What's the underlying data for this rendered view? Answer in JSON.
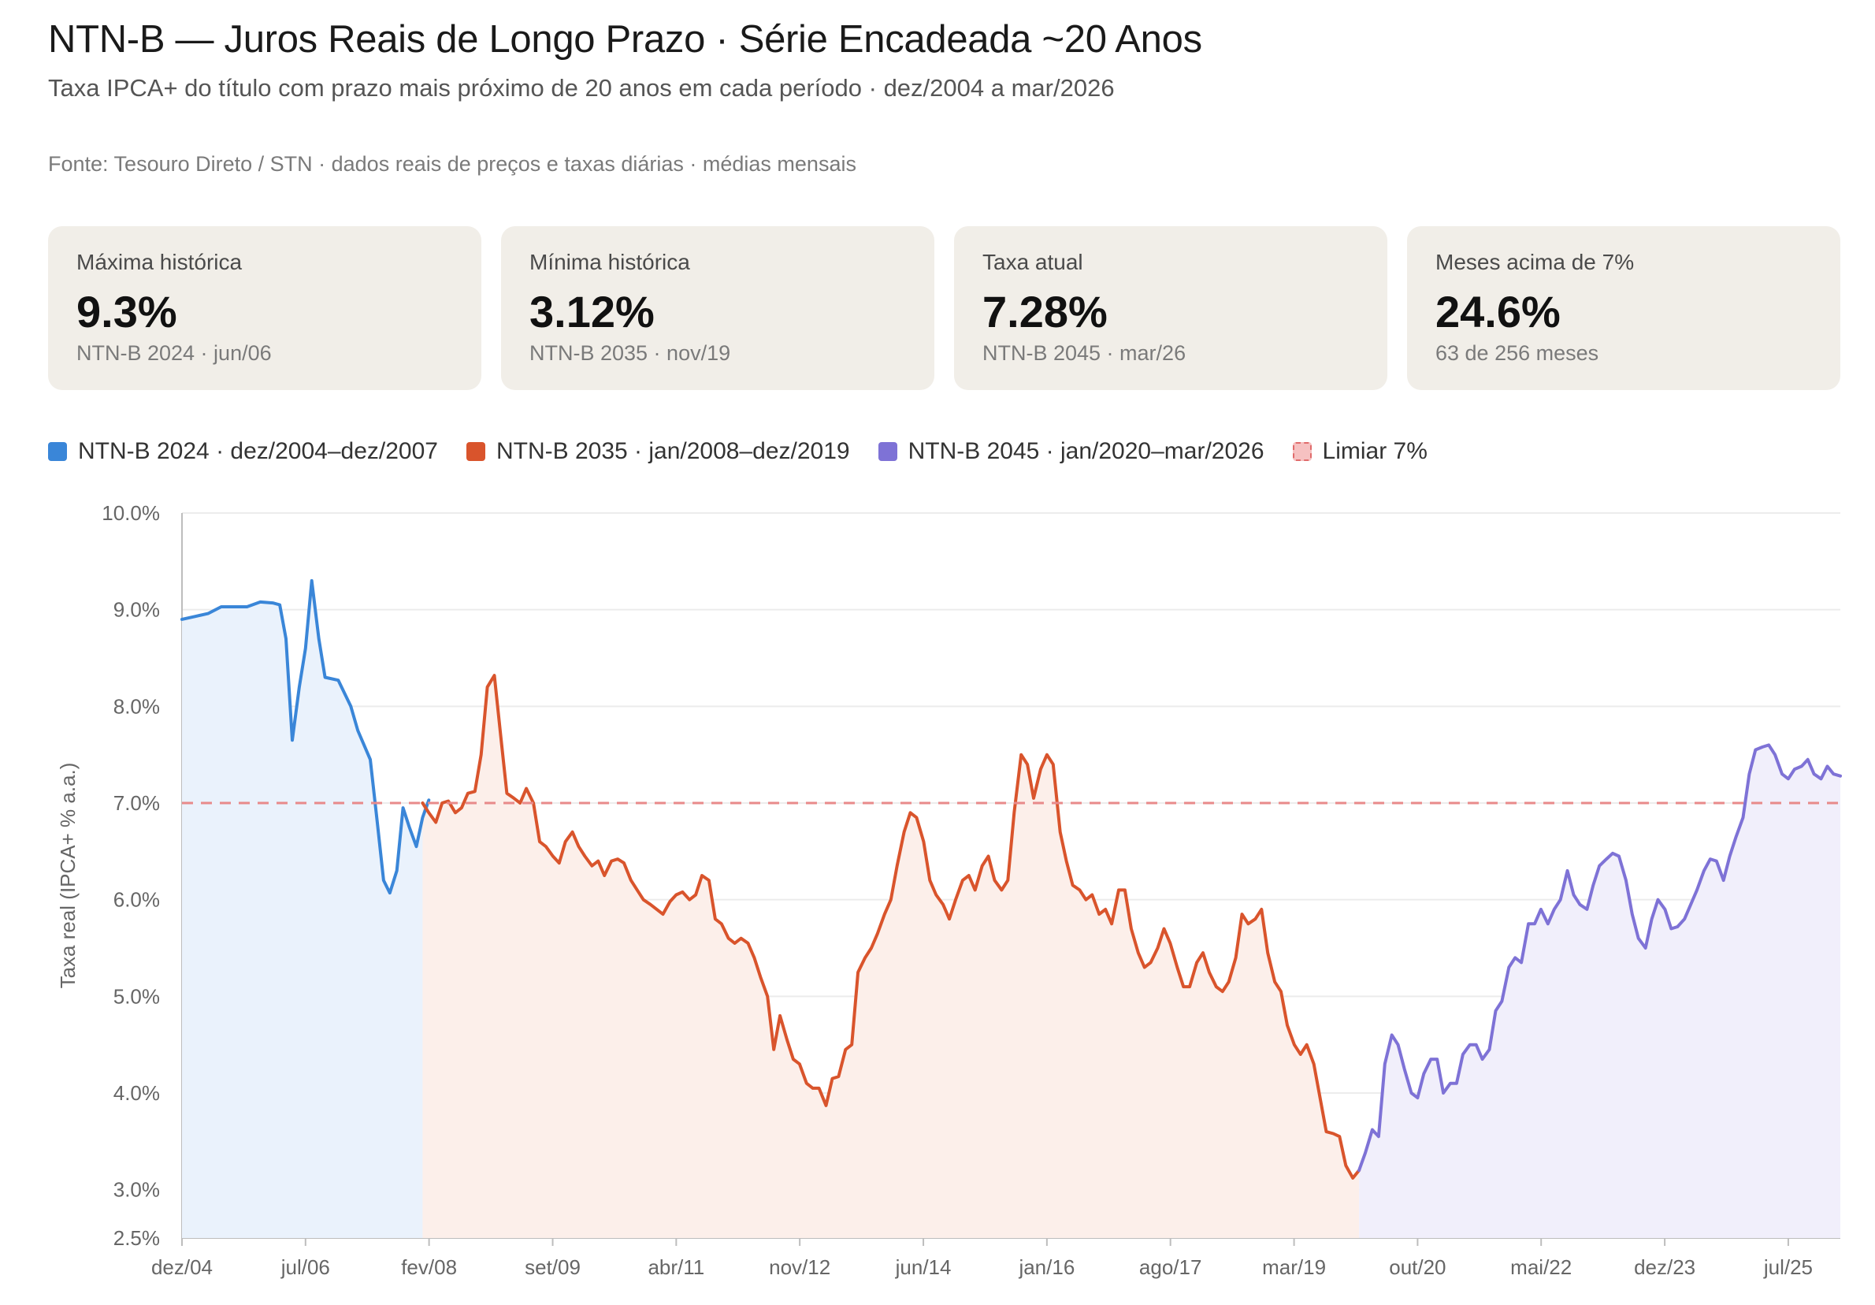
{
  "header": {
    "title": "NTN-B — Juros Reais de Longo Prazo · Série Encadeada ~20 Anos",
    "subtitle": "Taxa IPCA+ do título com prazo mais próximo de 20 anos em cada período · dez/2004 a mar/2026",
    "source": "Fonte: Tesouro Direto / STN · dados reais de preços e taxas diárias · médias mensais"
  },
  "cards": [
    {
      "label": "Máxima histórica",
      "value": "9.3%",
      "sub": "NTN-B 2024 · jun/06"
    },
    {
      "label": "Mínima histórica",
      "value": "3.12%",
      "sub": "NTN-B 2035 · nov/19"
    },
    {
      "label": "Taxa atual",
      "value": "7.28%",
      "sub": "NTN-B 2045 · mar/26"
    },
    {
      "label": "Meses acima de 7%",
      "value": "24.6%",
      "sub": "63 de 256 meses"
    }
  ],
  "legend": [
    {
      "label": "NTN-B 2024 · dez/2004–dez/2007",
      "color": "#3a86d8"
    },
    {
      "label": "NTN-B 2035 · jan/2008–dez/2019",
      "color": "#d9542c"
    },
    {
      "label": "NTN-B 2045 · jan/2020–mar/2026",
      "color": "#7e72d6"
    },
    {
      "label": "Limiar 7%",
      "color": "#e06b6b"
    }
  ],
  "colors": {
    "ntnb2024": "#3a86d8",
    "ntnb2024_fill": "#eaf2fc",
    "ntnb2035": "#d9542c",
    "ntnb2035_fill": "#fcefea",
    "ntnb2045": "#7e72d6",
    "ntnb2045_fill": "#f1effb",
    "threshold": "#e88a8a",
    "grid": "#ececec",
    "axis": "#bdbdbd"
  },
  "chart_data": {
    "type": "area",
    "title": "NTN-B — Juros Reais de Longo Prazo · Série Encadeada ~20 Anos",
    "xlabel": "",
    "ylabel": "Taxa real (IPCA+ % a.a.)",
    "ylim": [
      2.5,
      10.0
    ],
    "x_range_years": [
      2004.917,
      2026.167
    ],
    "y_ticks": [
      {
        "value": 2.5,
        "label": "2.5%"
      },
      {
        "value": 3.0,
        "label": "3.0%"
      },
      {
        "value": 4.0,
        "label": "4.0%"
      },
      {
        "value": 5.0,
        "label": "5.0%"
      },
      {
        "value": 6.0,
        "label": "6.0%"
      },
      {
        "value": 7.0,
        "label": "7.0%"
      },
      {
        "value": 8.0,
        "label": "8.0%"
      },
      {
        "value": 9.0,
        "label": "9.0%"
      },
      {
        "value": 10.0,
        "label": "10.0%"
      }
    ],
    "x_ticks": [
      {
        "label": "dez/04",
        "year": 2004.917
      },
      {
        "label": "jul/06",
        "year": 2006.5
      },
      {
        "label": "fev/08",
        "year": 2008.083
      },
      {
        "label": "set/09",
        "year": 2009.667
      },
      {
        "label": "abr/11",
        "year": 2011.25
      },
      {
        "label": "nov/12",
        "year": 2012.833
      },
      {
        "label": "jun/14",
        "year": 2014.417
      },
      {
        "label": "jan/16",
        "year": 2016.0
      },
      {
        "label": "ago/17",
        "year": 2017.583
      },
      {
        "label": "mar/19",
        "year": 2019.167
      },
      {
        "label": "out/20",
        "year": 2020.75
      },
      {
        "label": "mai/22",
        "year": 2022.333
      },
      {
        "label": "dez/23",
        "year": 2023.917
      },
      {
        "label": "jul/25",
        "year": 2025.5
      }
    ],
    "threshold": {
      "value": 7.0,
      "label": "Limiar 7%"
    },
    "series": [
      {
        "name": "NTN-B 2024 · dez/2004–dez/2007",
        "key": "ntnb2024",
        "points": [
          [
            2004.917,
            8.9
          ],
          [
            2005.083,
            8.93
          ],
          [
            2005.25,
            8.96
          ],
          [
            2005.42,
            9.03
          ],
          [
            2005.58,
            9.03
          ],
          [
            2005.75,
            9.03
          ],
          [
            2005.92,
            9.08
          ],
          [
            2006.08,
            9.07
          ],
          [
            2006.17,
            9.05
          ],
          [
            2006.25,
            8.7
          ],
          [
            2006.33,
            7.65
          ],
          [
            2006.42,
            8.2
          ],
          [
            2006.5,
            8.6
          ],
          [
            2006.58,
            9.3
          ],
          [
            2006.67,
            8.7
          ],
          [
            2006.75,
            8.3
          ],
          [
            2006.92,
            8.27
          ],
          [
            2007.08,
            8.0
          ],
          [
            2007.17,
            7.75
          ],
          [
            2007.33,
            7.45
          ],
          [
            2007.42,
            6.8
          ],
          [
            2007.5,
            6.2
          ],
          [
            2007.58,
            6.07
          ],
          [
            2007.67,
            6.3
          ],
          [
            2007.75,
            6.95
          ],
          [
            2007.83,
            6.75
          ],
          [
            2007.92,
            6.55
          ],
          [
            2008.0,
            6.85
          ],
          [
            2008.08,
            7.03
          ]
        ]
      },
      {
        "name": "NTN-B 2035 · jan/2008–dez/2019",
        "key": "ntnb2035",
        "points": [
          [
            2008.0,
            7.0
          ],
          [
            2008.08,
            6.9
          ],
          [
            2008.17,
            6.8
          ],
          [
            2008.25,
            7.0
          ],
          [
            2008.33,
            7.02
          ],
          [
            2008.42,
            6.9
          ],
          [
            2008.5,
            6.95
          ],
          [
            2008.58,
            7.1
          ],
          [
            2008.67,
            7.12
          ],
          [
            2008.75,
            7.5
          ],
          [
            2008.83,
            8.2
          ],
          [
            2008.92,
            8.32
          ],
          [
            2009.0,
            7.7
          ],
          [
            2009.08,
            7.1
          ],
          [
            2009.17,
            7.05
          ],
          [
            2009.25,
            7.0
          ],
          [
            2009.33,
            7.15
          ],
          [
            2009.42,
            7.0
          ],
          [
            2009.5,
            6.6
          ],
          [
            2009.58,
            6.55
          ],
          [
            2009.67,
            6.45
          ],
          [
            2009.75,
            6.38
          ],
          [
            2009.83,
            6.6
          ],
          [
            2009.92,
            6.7
          ],
          [
            2010.0,
            6.55
          ],
          [
            2010.08,
            6.45
          ],
          [
            2010.17,
            6.35
          ],
          [
            2010.25,
            6.4
          ],
          [
            2010.33,
            6.25
          ],
          [
            2010.42,
            6.4
          ],
          [
            2010.5,
            6.42
          ],
          [
            2010.58,
            6.38
          ],
          [
            2010.67,
            6.2
          ],
          [
            2010.75,
            6.1
          ],
          [
            2010.83,
            6.0
          ],
          [
            2010.92,
            5.95
          ],
          [
            2011.0,
            5.9
          ],
          [
            2011.08,
            5.85
          ],
          [
            2011.17,
            5.98
          ],
          [
            2011.25,
            6.05
          ],
          [
            2011.33,
            6.08
          ],
          [
            2011.42,
            6.0
          ],
          [
            2011.5,
            6.05
          ],
          [
            2011.58,
            6.25
          ],
          [
            2011.67,
            6.2
          ],
          [
            2011.75,
            5.8
          ],
          [
            2011.83,
            5.75
          ],
          [
            2011.92,
            5.6
          ],
          [
            2012.0,
            5.55
          ],
          [
            2012.08,
            5.6
          ],
          [
            2012.17,
            5.55
          ],
          [
            2012.25,
            5.4
          ],
          [
            2012.33,
            5.2
          ],
          [
            2012.42,
            5.0
          ],
          [
            2012.5,
            4.45
          ],
          [
            2012.58,
            4.8
          ],
          [
            2012.67,
            4.55
          ],
          [
            2012.75,
            4.35
          ],
          [
            2012.83,
            4.3
          ],
          [
            2012.92,
            4.1
          ],
          [
            2013.0,
            4.05
          ],
          [
            2013.08,
            4.05
          ],
          [
            2013.17,
            3.87
          ],
          [
            2013.25,
            4.15
          ],
          [
            2013.33,
            4.17
          ],
          [
            2013.42,
            4.45
          ],
          [
            2013.5,
            4.5
          ],
          [
            2013.58,
            5.25
          ],
          [
            2013.67,
            5.4
          ],
          [
            2013.75,
            5.5
          ],
          [
            2013.83,
            5.65
          ],
          [
            2013.92,
            5.85
          ],
          [
            2014.0,
            6.0
          ],
          [
            2014.08,
            6.35
          ],
          [
            2014.17,
            6.7
          ],
          [
            2014.25,
            6.9
          ],
          [
            2014.33,
            6.85
          ],
          [
            2014.42,
            6.6
          ],
          [
            2014.5,
            6.2
          ],
          [
            2014.58,
            6.05
          ],
          [
            2014.67,
            5.95
          ],
          [
            2014.75,
            5.8
          ],
          [
            2014.83,
            6.0
          ],
          [
            2014.92,
            6.2
          ],
          [
            2015.0,
            6.25
          ],
          [
            2015.08,
            6.1
          ],
          [
            2015.17,
            6.35
          ],
          [
            2015.25,
            6.45
          ],
          [
            2015.33,
            6.2
          ],
          [
            2015.42,
            6.1
          ],
          [
            2015.5,
            6.2
          ],
          [
            2015.58,
            6.9
          ],
          [
            2015.67,
            7.5
          ],
          [
            2015.75,
            7.4
          ],
          [
            2015.83,
            7.05
          ],
          [
            2015.92,
            7.35
          ],
          [
            2016.0,
            7.5
          ],
          [
            2016.08,
            7.4
          ],
          [
            2016.17,
            6.7
          ],
          [
            2016.25,
            6.4
          ],
          [
            2016.33,
            6.15
          ],
          [
            2016.42,
            6.1
          ],
          [
            2016.5,
            6.0
          ],
          [
            2016.58,
            6.05
          ],
          [
            2016.67,
            5.85
          ],
          [
            2016.75,
            5.9
          ],
          [
            2016.83,
            5.75
          ],
          [
            2016.92,
            6.1
          ],
          [
            2017.0,
            6.1
          ],
          [
            2017.08,
            5.7
          ],
          [
            2017.17,
            5.45
          ],
          [
            2017.25,
            5.3
          ],
          [
            2017.33,
            5.35
          ],
          [
            2017.42,
            5.5
          ],
          [
            2017.5,
            5.7
          ],
          [
            2017.58,
            5.55
          ],
          [
            2017.67,
            5.3
          ],
          [
            2017.75,
            5.1
          ],
          [
            2017.83,
            5.1
          ],
          [
            2017.92,
            5.35
          ],
          [
            2018.0,
            5.45
          ],
          [
            2018.08,
            5.25
          ],
          [
            2018.17,
            5.1
          ],
          [
            2018.25,
            5.05
          ],
          [
            2018.33,
            5.15
          ],
          [
            2018.42,
            5.4
          ],
          [
            2018.5,
            5.85
          ],
          [
            2018.58,
            5.75
          ],
          [
            2018.67,
            5.8
          ],
          [
            2018.75,
            5.9
          ],
          [
            2018.83,
            5.45
          ],
          [
            2018.92,
            5.15
          ],
          [
            2019.0,
            5.05
          ],
          [
            2019.08,
            4.7
          ],
          [
            2019.17,
            4.5
          ],
          [
            2019.25,
            4.4
          ],
          [
            2019.33,
            4.5
          ],
          [
            2019.42,
            4.3
          ],
          [
            2019.5,
            3.95
          ],
          [
            2019.58,
            3.6
          ],
          [
            2019.67,
            3.58
          ],
          [
            2019.75,
            3.55
          ],
          [
            2019.83,
            3.25
          ],
          [
            2019.92,
            3.12
          ],
          [
            2020.0,
            3.2
          ]
        ]
      },
      {
        "name": "NTN-B 2045 · jan/2020–mar/2026",
        "key": "ntnb2045",
        "points": [
          [
            2020.0,
            3.2
          ],
          [
            2020.08,
            3.38
          ],
          [
            2020.17,
            3.62
          ],
          [
            2020.25,
            3.55
          ],
          [
            2020.33,
            4.3
          ],
          [
            2020.42,
            4.6
          ],
          [
            2020.5,
            4.5
          ],
          [
            2020.58,
            4.25
          ],
          [
            2020.67,
            4.0
          ],
          [
            2020.75,
            3.95
          ],
          [
            2020.83,
            4.2
          ],
          [
            2020.92,
            4.35
          ],
          [
            2021.0,
            4.35
          ],
          [
            2021.08,
            4.0
          ],
          [
            2021.17,
            4.1
          ],
          [
            2021.25,
            4.1
          ],
          [
            2021.33,
            4.4
          ],
          [
            2021.42,
            4.5
          ],
          [
            2021.5,
            4.5
          ],
          [
            2021.58,
            4.35
          ],
          [
            2021.67,
            4.45
          ],
          [
            2021.75,
            4.85
          ],
          [
            2021.83,
            4.95
          ],
          [
            2021.92,
            5.3
          ],
          [
            2022.0,
            5.4
          ],
          [
            2022.08,
            5.35
          ],
          [
            2022.17,
            5.75
          ],
          [
            2022.25,
            5.75
          ],
          [
            2022.33,
            5.9
          ],
          [
            2022.42,
            5.75
          ],
          [
            2022.5,
            5.9
          ],
          [
            2022.58,
            6.0
          ],
          [
            2022.67,
            6.3
          ],
          [
            2022.75,
            6.05
          ],
          [
            2022.83,
            5.95
          ],
          [
            2022.92,
            5.9
          ],
          [
            2023.0,
            6.15
          ],
          [
            2023.08,
            6.35
          ],
          [
            2023.17,
            6.42
          ],
          [
            2023.25,
            6.48
          ],
          [
            2023.33,
            6.45
          ],
          [
            2023.42,
            6.2
          ],
          [
            2023.5,
            5.85
          ],
          [
            2023.58,
            5.6
          ],
          [
            2023.67,
            5.5
          ],
          [
            2023.75,
            5.8
          ],
          [
            2023.83,
            6.0
          ],
          [
            2023.92,
            5.9
          ],
          [
            2024.0,
            5.7
          ],
          [
            2024.08,
            5.72
          ],
          [
            2024.17,
            5.8
          ],
          [
            2024.25,
            5.95
          ],
          [
            2024.33,
            6.1
          ],
          [
            2024.42,
            6.3
          ],
          [
            2024.5,
            6.42
          ],
          [
            2024.58,
            6.4
          ],
          [
            2024.67,
            6.2
          ],
          [
            2024.75,
            6.45
          ],
          [
            2024.83,
            6.65
          ],
          [
            2024.92,
            6.85
          ],
          [
            2025.0,
            7.3
          ],
          [
            2025.08,
            7.55
          ],
          [
            2025.17,
            7.58
          ],
          [
            2025.25,
            7.6
          ],
          [
            2025.33,
            7.5
          ],
          [
            2025.42,
            7.3
          ],
          [
            2025.5,
            7.25
          ],
          [
            2025.58,
            7.35
          ],
          [
            2025.67,
            7.38
          ],
          [
            2025.75,
            7.45
          ],
          [
            2025.83,
            7.3
          ],
          [
            2025.92,
            7.25
          ],
          [
            2026.0,
            7.38
          ],
          [
            2026.08,
            7.3
          ],
          [
            2026.167,
            7.28
          ]
        ]
      }
    ]
  }
}
